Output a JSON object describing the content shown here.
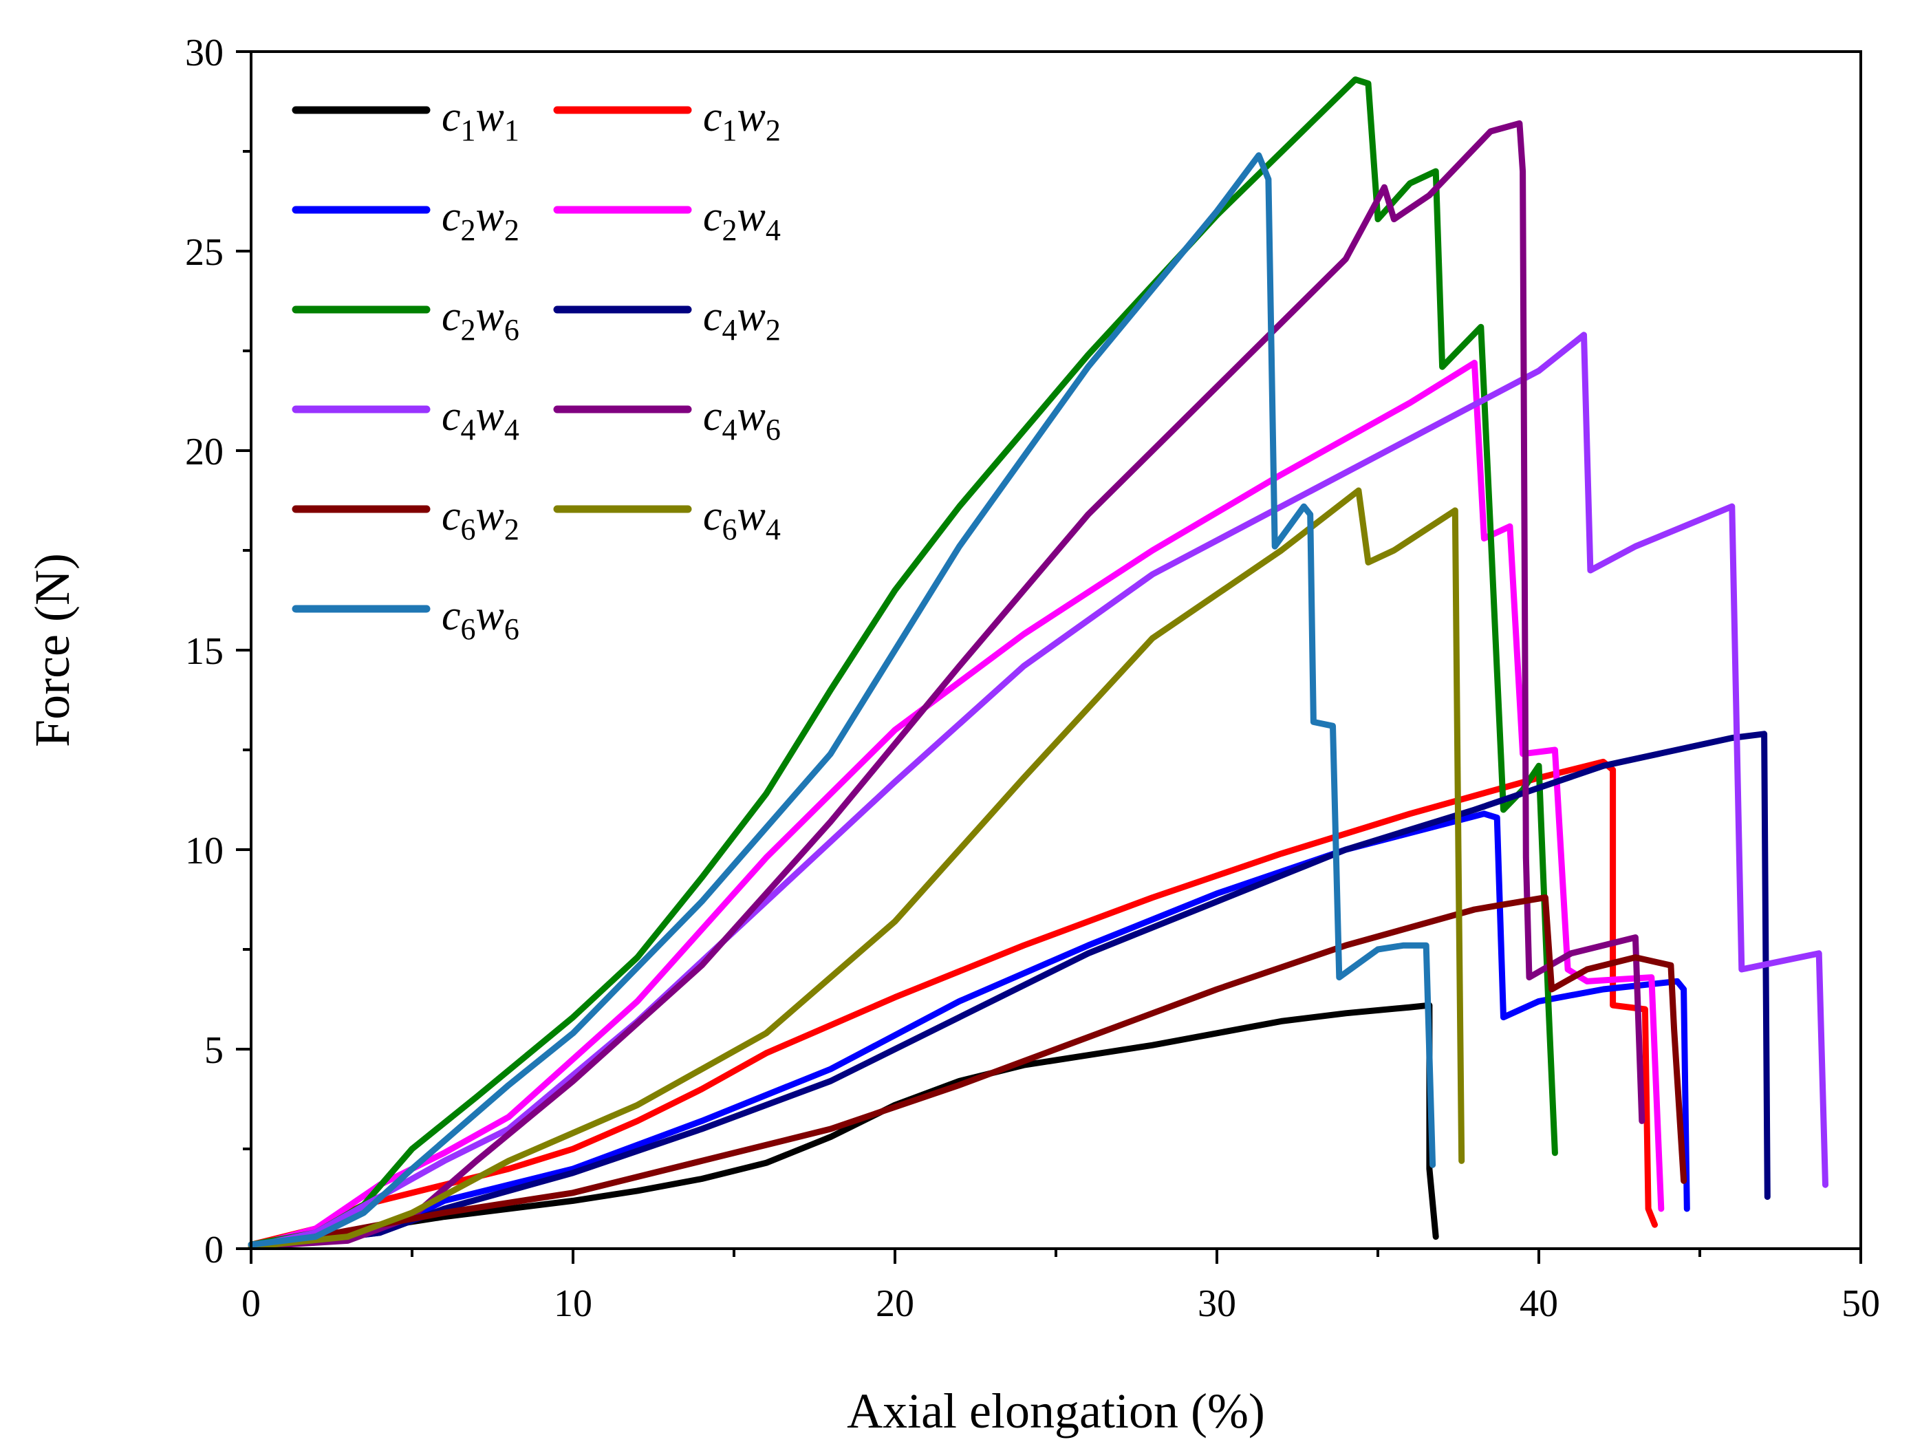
{
  "chart_data": {
    "type": "line",
    "title": "",
    "xlabel": "Axial elongation (%)",
    "ylabel": "Force (N)",
    "xlim": [
      0,
      50
    ],
    "ylim": [
      0,
      30
    ],
    "xticks": [
      0,
      10,
      20,
      30,
      40,
      50
    ],
    "yticks": [
      0,
      5,
      10,
      15,
      20,
      25,
      30
    ],
    "xtick_labels": [
      "0",
      "10",
      "20",
      "30",
      "40",
      "50"
    ],
    "ytick_labels": [
      "0",
      "5",
      "10",
      "15",
      "20",
      "25",
      "30"
    ],
    "grid": false,
    "legend_position": "top-left",
    "series": [
      {
        "name": "c1w1",
        "label_c": "c",
        "label_ci": "1",
        "label_w": "w",
        "label_wi": "1",
        "color": "#000000",
        "points": [
          [
            0,
            0.1
          ],
          [
            2,
            0.3
          ],
          [
            4,
            0.55
          ],
          [
            6,
            0.8
          ],
          [
            8,
            1
          ],
          [
            10,
            1.2
          ],
          [
            12,
            1.45
          ],
          [
            14,
            1.75
          ],
          [
            16,
            2.15
          ],
          [
            18,
            2.8
          ],
          [
            20,
            3.6
          ],
          [
            22,
            4.2
          ],
          [
            24,
            4.6
          ],
          [
            26,
            4.85
          ],
          [
            28,
            5.1
          ],
          [
            30,
            5.4
          ],
          [
            32,
            5.7
          ],
          [
            34,
            5.9
          ],
          [
            36,
            6.05
          ],
          [
            36.6,
            6.1
          ],
          [
            36.6,
            2
          ],
          [
            36.8,
            0.3
          ]
        ]
      },
      {
        "name": "c1w2",
        "label_c": "c",
        "label_ci": "1",
        "label_w": "w",
        "label_wi": "2",
        "color": "#ff0000",
        "points": [
          [
            0,
            0.1
          ],
          [
            2,
            0.5
          ],
          [
            3.5,
            1.1
          ],
          [
            6,
            1.6
          ],
          [
            8,
            2
          ],
          [
            10,
            2.5
          ],
          [
            12,
            3.2
          ],
          [
            14,
            4
          ],
          [
            16,
            4.9
          ],
          [
            18,
            5.6
          ],
          [
            20,
            6.3
          ],
          [
            24,
            7.6
          ],
          [
            28,
            8.8
          ],
          [
            32,
            9.9
          ],
          [
            36,
            10.9
          ],
          [
            40,
            11.8
          ],
          [
            42,
            12.2
          ],
          [
            42.3,
            12
          ],
          [
            42.3,
            6.1
          ],
          [
            43.3,
            6
          ],
          [
            43.4,
            1
          ],
          [
            43.6,
            0.6
          ]
        ]
      },
      {
        "name": "c2w2",
        "label_c": "c",
        "label_ci": "2",
        "label_w": "w",
        "label_wi": "2",
        "color": "#0000ff",
        "points": [
          [
            0,
            0.05
          ],
          [
            2,
            0.2
          ],
          [
            4,
            0.4
          ],
          [
            6,
            1.2
          ],
          [
            10,
            2
          ],
          [
            14,
            3.2
          ],
          [
            18,
            4.5
          ],
          [
            22,
            6.2
          ],
          [
            26,
            7.6
          ],
          [
            30,
            8.9
          ],
          [
            34,
            10
          ],
          [
            38.3,
            10.9
          ],
          [
            38.7,
            10.8
          ],
          [
            38.9,
            5.8
          ],
          [
            40,
            6.2
          ],
          [
            42,
            6.5
          ],
          [
            44.3,
            6.7
          ],
          [
            44.5,
            6.5
          ],
          [
            44.6,
            1
          ]
        ]
      },
      {
        "name": "c2w4",
        "label_c": "c",
        "label_ci": "2",
        "label_w": "w",
        "label_wi": "4",
        "color": "#ff00ff",
        "points": [
          [
            0,
            0.05
          ],
          [
            2,
            0.5
          ],
          [
            4,
            1.6
          ],
          [
            6,
            2.4
          ],
          [
            8,
            3.3
          ],
          [
            12,
            6.2
          ],
          [
            16,
            9.8
          ],
          [
            20,
            13
          ],
          [
            24,
            15.4
          ],
          [
            28,
            17.5
          ],
          [
            32,
            19.4
          ],
          [
            36,
            21.2
          ],
          [
            38,
            22.2
          ],
          [
            38.3,
            17.8
          ],
          [
            39.1,
            18.1
          ],
          [
            39.5,
            12.4
          ],
          [
            40.5,
            12.5
          ],
          [
            40.9,
            7
          ],
          [
            41.5,
            6.7
          ],
          [
            43.5,
            6.8
          ],
          [
            43.8,
            1
          ]
        ]
      },
      {
        "name": "c2w6",
        "label_c": "c",
        "label_ci": "2",
        "label_w": "w",
        "label_wi": "6",
        "color": "#008000",
        "points": [
          [
            0,
            0.1
          ],
          [
            2,
            0.4
          ],
          [
            3.5,
            1.1
          ],
          [
            5,
            2.5
          ],
          [
            7,
            3.8
          ],
          [
            10,
            5.8
          ],
          [
            12,
            7.3
          ],
          [
            14,
            9.3
          ],
          [
            16,
            11.4
          ],
          [
            18,
            14
          ],
          [
            20,
            16.5
          ],
          [
            22,
            18.6
          ],
          [
            26,
            22.4
          ],
          [
            30,
            25.9
          ],
          [
            34.3,
            29.3
          ],
          [
            34.7,
            29.2
          ],
          [
            35,
            25.8
          ],
          [
            36,
            26.7
          ],
          [
            36.8,
            27
          ],
          [
            37,
            22.1
          ],
          [
            38.2,
            23.1
          ],
          [
            38.5,
            18
          ],
          [
            38.9,
            11
          ],
          [
            39.5,
            11.5
          ],
          [
            40,
            12.1
          ],
          [
            40.3,
            6.1
          ],
          [
            40.5,
            2.4
          ]
        ]
      },
      {
        "name": "c4w2",
        "label_c": "c",
        "label_ci": "4",
        "label_w": "w",
        "label_wi": "2",
        "color": "#000080",
        "points": [
          [
            0,
            0.05
          ],
          [
            2,
            0.2
          ],
          [
            4,
            0.4
          ],
          [
            6,
            1
          ],
          [
            10,
            1.9
          ],
          [
            14,
            3
          ],
          [
            18,
            4.2
          ],
          [
            22,
            5.8
          ],
          [
            26,
            7.4
          ],
          [
            30,
            8.7
          ],
          [
            34,
            10
          ],
          [
            38,
            11
          ],
          [
            42,
            12.1
          ],
          [
            46,
            12.8
          ],
          [
            47,
            12.9
          ],
          [
            47.1,
            1.3
          ]
        ]
      },
      {
        "name": "c4w4",
        "label_c": "c",
        "label_ci": "4",
        "label_w": "w",
        "label_wi": "4",
        "color": "#9933ff",
        "points": [
          [
            0,
            0.05
          ],
          [
            2,
            0.4
          ],
          [
            4,
            1.3
          ],
          [
            6,
            2.2
          ],
          [
            8,
            3
          ],
          [
            12,
            5.7
          ],
          [
            16,
            8.7
          ],
          [
            20,
            11.7
          ],
          [
            24,
            14.6
          ],
          [
            28,
            16.9
          ],
          [
            32,
            18.6
          ],
          [
            36,
            20.3
          ],
          [
            40,
            22
          ],
          [
            41.4,
            22.9
          ],
          [
            41.6,
            17
          ],
          [
            43,
            17.6
          ],
          [
            46,
            18.6
          ],
          [
            46.3,
            7
          ],
          [
            48.7,
            7.4
          ],
          [
            48.9,
            1.6
          ]
        ]
      },
      {
        "name": "c4w6",
        "label_c": "c",
        "label_ci": "4",
        "label_w": "w",
        "label_wi": "6",
        "color": "#800080",
        "points": [
          [
            0,
            0.05
          ],
          [
            3,
            0.2
          ],
          [
            5,
            0.8
          ],
          [
            7,
            2.2
          ],
          [
            10,
            4.2
          ],
          [
            14,
            7.1
          ],
          [
            18,
            10.7
          ],
          [
            22,
            14.6
          ],
          [
            26,
            18.4
          ],
          [
            30,
            21.6
          ],
          [
            34,
            24.8
          ],
          [
            35.2,
            26.6
          ],
          [
            35.5,
            25.8
          ],
          [
            36.6,
            26.4
          ],
          [
            38.5,
            28
          ],
          [
            39.4,
            28.2
          ],
          [
            39.5,
            27
          ],
          [
            39.6,
            9.8
          ],
          [
            39.7,
            6.8
          ],
          [
            41,
            7.4
          ],
          [
            43,
            7.8
          ],
          [
            43.2,
            3.2
          ]
        ]
      },
      {
        "name": "c6w2",
        "label_c": "c",
        "label_ci": "6",
        "label_w": "w",
        "label_wi": "2",
        "color": "#800000",
        "points": [
          [
            0,
            0.05
          ],
          [
            2,
            0.3
          ],
          [
            4,
            0.6
          ],
          [
            6,
            0.9
          ],
          [
            10,
            1.4
          ],
          [
            14,
            2.2
          ],
          [
            18,
            3
          ],
          [
            22,
            4.1
          ],
          [
            26,
            5.3
          ],
          [
            30,
            6.5
          ],
          [
            34,
            7.6
          ],
          [
            38,
            8.5
          ],
          [
            40.2,
            8.8
          ],
          [
            40.4,
            6.5
          ],
          [
            41.5,
            7
          ],
          [
            43,
            7.3
          ],
          [
            44.1,
            7.1
          ],
          [
            44.2,
            5.5
          ],
          [
            44.5,
            1.7
          ]
        ]
      },
      {
        "name": "c6w4",
        "label_c": "c",
        "label_ci": "6",
        "label_w": "w",
        "label_wi": "4",
        "color": "#808000",
        "points": [
          [
            0,
            0.05
          ],
          [
            3,
            0.3
          ],
          [
            5,
            0.9
          ],
          [
            8,
            2.2
          ],
          [
            12,
            3.6
          ],
          [
            16,
            5.4
          ],
          [
            20,
            8.2
          ],
          [
            24,
            11.8
          ],
          [
            28,
            15.3
          ],
          [
            32,
            17.5
          ],
          [
            34.4,
            19
          ],
          [
            34.7,
            17.2
          ],
          [
            35.5,
            17.5
          ],
          [
            37.4,
            18.5
          ],
          [
            37.5,
            10
          ],
          [
            37.6,
            2.2
          ]
        ]
      },
      {
        "name": "c6w6",
        "label_c": "c",
        "label_ci": "6",
        "label_w": "w",
        "label_wi": "6",
        "color": "#1f77b4",
        "points": [
          [
            0,
            0.1
          ],
          [
            2,
            0.3
          ],
          [
            3.5,
            0.9
          ],
          [
            5,
            2
          ],
          [
            8,
            4.1
          ],
          [
            10,
            5.4
          ],
          [
            14,
            8.7
          ],
          [
            18,
            12.4
          ],
          [
            22,
            17.6
          ],
          [
            26,
            22.1
          ],
          [
            30,
            26
          ],
          [
            31.3,
            27.4
          ],
          [
            31.6,
            26.8
          ],
          [
            31.8,
            17.6
          ],
          [
            32.7,
            18.6
          ],
          [
            32.9,
            18.4
          ],
          [
            33,
            13.2
          ],
          [
            33.6,
            13.1
          ],
          [
            33.8,
            6.8
          ],
          [
            35,
            7.5
          ],
          [
            35.8,
            7.6
          ],
          [
            36.5,
            7.6
          ],
          [
            36.7,
            2.1
          ]
        ]
      }
    ]
  }
}
